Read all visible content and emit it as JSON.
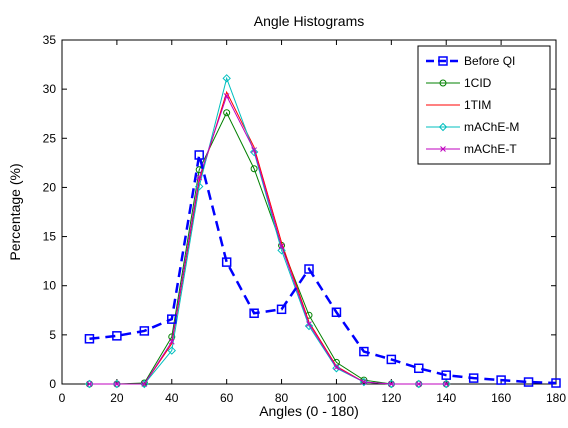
{
  "chart_data": {
    "type": "line",
    "title": "Angle Histograms",
    "xlabel": "Angles (0 - 180)",
    "ylabel": "Percentage (%)",
    "xlim": [
      0,
      180
    ],
    "ylim": [
      0,
      35
    ],
    "xticks": [
      0,
      20,
      40,
      60,
      80,
      100,
      120,
      140,
      160,
      180
    ],
    "yticks": [
      0,
      5,
      10,
      15,
      20,
      25,
      30,
      35
    ],
    "grid": false,
    "legend_position": "top-right",
    "x": [
      10,
      20,
      30,
      40,
      50,
      60,
      70,
      80,
      90,
      100,
      110,
      120,
      130,
      140,
      150,
      160,
      170,
      180
    ],
    "series": [
      {
        "name": "Before QI",
        "color": "#0000ff",
        "marker": "square",
        "dash": true,
        "width": 2.5,
        "values": [
          4.6,
          4.9,
          5.4,
          6.6,
          23.3,
          12.4,
          7.2,
          7.6,
          11.7,
          7.3,
          3.3,
          2.5,
          1.6,
          0.9,
          0.6,
          0.4,
          0.2,
          0.1
        ]
      },
      {
        "name": "1CID",
        "color": "#008000",
        "marker": "circle",
        "dash": false,
        "width": 1,
        "values": [
          0,
          0,
          0.1,
          4.8,
          21.8,
          27.6,
          21.9,
          14.1,
          7.0,
          2.2,
          0.4,
          0,
          0,
          0,
          null,
          null,
          null,
          null
        ]
      },
      {
        "name": "1TIM",
        "color": "#ff0000",
        "marker": "none",
        "dash": false,
        "width": 1,
        "values": [
          0,
          0,
          0,
          4.1,
          20.6,
          29.7,
          24.1,
          14.4,
          6.3,
          1.8,
          0.2,
          0,
          0,
          0,
          null,
          null,
          null,
          null
        ]
      },
      {
        "name": "mAChE-M",
        "color": "#00bfbf",
        "marker": "diamond",
        "dash": false,
        "width": 1,
        "values": [
          0,
          0,
          0,
          3.4,
          20.1,
          31.1,
          23.6,
          13.6,
          5.9,
          1.6,
          0.2,
          0,
          0,
          0,
          null,
          null,
          null,
          null
        ]
      },
      {
        "name": "mAChE-T",
        "color": "#bf00bf",
        "marker": "x",
        "dash": false,
        "width": 1,
        "values": [
          0,
          0,
          0,
          4.3,
          21.0,
          29.3,
          23.8,
          14.0,
          6.1,
          1.7,
          0.2,
          0,
          0,
          0,
          null,
          null,
          null,
          null
        ]
      }
    ]
  }
}
